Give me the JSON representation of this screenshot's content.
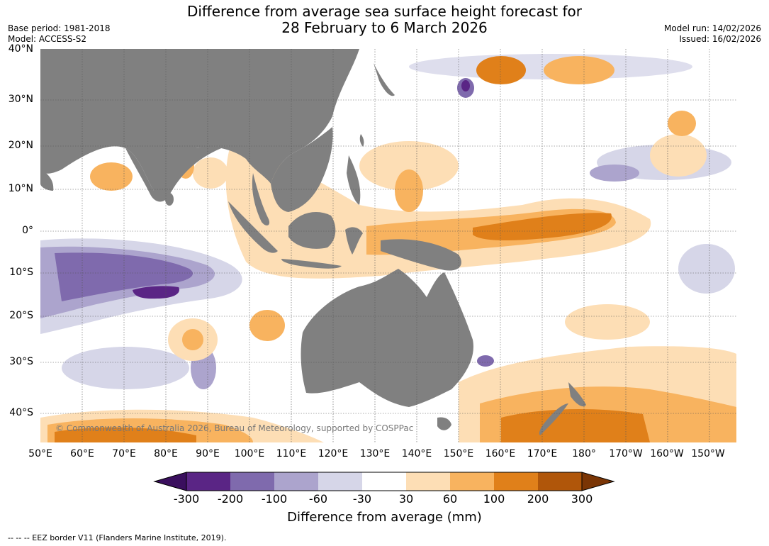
{
  "title": {
    "line1": "Difference from average sea surface height forecast for",
    "line2": "28 February to 6 March 2026"
  },
  "meta": {
    "base_period": "Base period: 1981-2018",
    "model": "Model: ACCESS-S2",
    "model_run": "Model run: 14/02/2026",
    "issued": "Issued: 16/02/2026"
  },
  "axes": {
    "lat_labels": [
      "40°N",
      "30°N",
      "20°N",
      "10°N",
      "0°",
      "10°S",
      "20°S",
      "30°S",
      "40°S"
    ],
    "lon_labels": [
      "50°E",
      "60°E",
      "70°E",
      "80°E",
      "90°E",
      "100°E",
      "110°E",
      "120°E",
      "130°E",
      "140°E",
      "150°E",
      "160°E",
      "170°E",
      "180°",
      "170°W",
      "160°W",
      "150°W"
    ]
  },
  "colorbar": {
    "ticks": [
      "-300",
      "-200",
      "-100",
      "-60",
      "-30",
      "30",
      "60",
      "100",
      "200",
      "300"
    ],
    "colors": [
      "#3a0f5e",
      "#5a2585",
      "#7f6aad",
      "#aca4cd",
      "#d6d6e8",
      "#ffffff",
      "#fddeb5",
      "#f8b35f",
      "#e0801a",
      "#b0560a",
      "#7a3505"
    ],
    "title": "Difference from average (mm)"
  },
  "map": {
    "land_color": "#808080",
    "copyright": "© Commonwealth of Australia 2026, Bureau of Meteorology, supported by COSPPac"
  },
  "footer": "--  --  -- EEZ border V11 (Flanders Marine Institute, 2019)."
}
